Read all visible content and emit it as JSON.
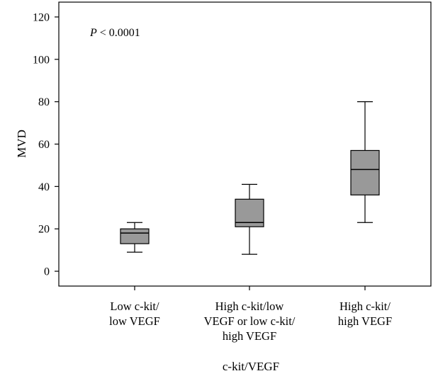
{
  "chart_data": {
    "type": "box",
    "xlabel": "c-kit/VEGF",
    "ylabel": "MVD",
    "ylim": [
      -7,
      127
    ],
    "yticks": [
      0,
      20,
      40,
      60,
      80,
      100,
      120
    ],
    "grid": false,
    "annotation": {
      "italic": "P",
      "rest": " < 0.0001"
    },
    "box_color": "#999999",
    "categories": [
      {
        "label_lines": [
          "Low c-kit/",
          "low VEGF"
        ]
      },
      {
        "label_lines": [
          "High c-kit/low",
          "VEGF or low c-kit/",
          "high VEGF"
        ]
      },
      {
        "label_lines": [
          "High c-kit/",
          "high VEGF"
        ]
      }
    ],
    "boxes": [
      {
        "min": 9,
        "q1": 13,
        "median": 18,
        "q3": 20,
        "max": 23
      },
      {
        "min": 8,
        "q1": 21,
        "median": 23,
        "q3": 34,
        "max": 41
      },
      {
        "min": 23,
        "q1": 36,
        "median": 48,
        "q3": 57,
        "max": 80
      }
    ]
  }
}
